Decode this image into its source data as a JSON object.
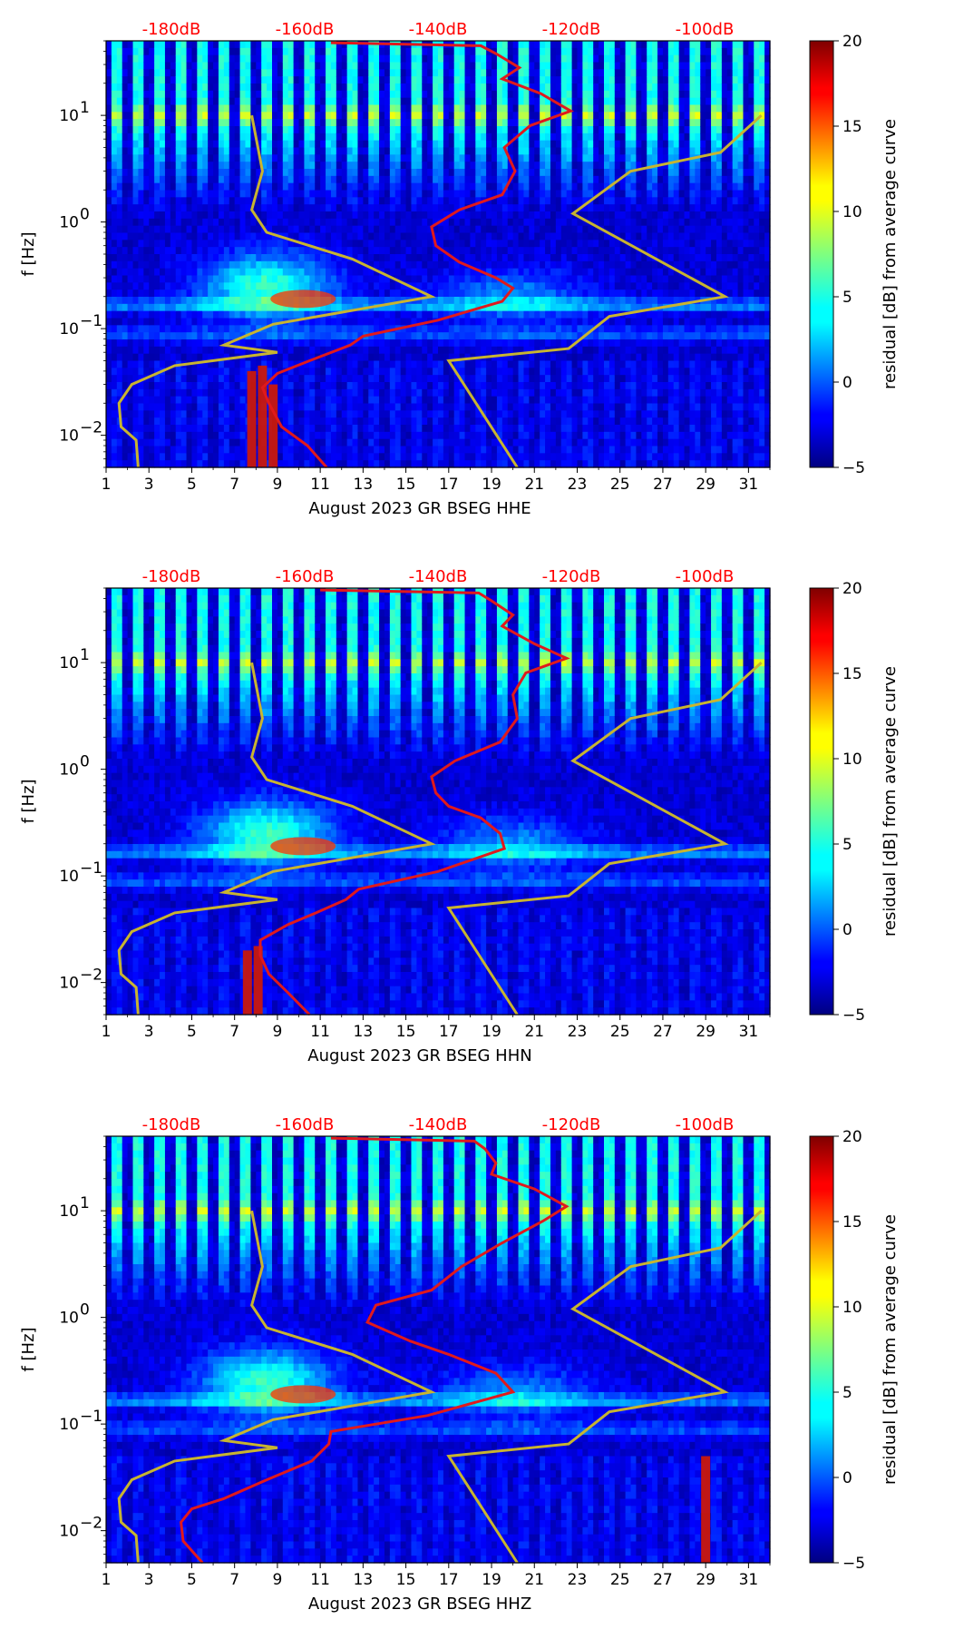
{
  "chart_data": [
    {
      "type": "heatmap",
      "channel": "HHE",
      "xlabel": "August 2023 GR BSEG  HHE",
      "ylabel": "f [Hz]",
      "x_ticks": [
        "1",
        "3",
        "5",
        "7",
        "9",
        "11",
        "13",
        "15",
        "17",
        "19",
        "21",
        "23",
        "25",
        "27",
        "29",
        "31"
      ],
      "y_ticks": [
        "10^-2",
        "10^-1",
        "10^0",
        "10^1"
      ],
      "xlim": [
        1,
        32
      ],
      "ylim": [
        0.005,
        50
      ],
      "yscale": "log",
      "colormap": "jet",
      "db_axis_ticks": [
        "-180dB",
        "-160dB",
        "-140dB",
        "-120dB",
        "-100dB"
      ],
      "db_axis_color": "#ff0000",
      "colorbar": {
        "label": "residual [dB] from average curve",
        "range": [
          -5,
          20
        ],
        "ticks": [
          "−5",
          "0",
          "5",
          "10",
          "15",
          "20"
        ]
      },
      "noise_models": [
        {
          "name": "",
          "color": "#c8b430",
          "points": [
            [
              2.5,
              0.005
            ],
            [
              2.4,
              0.009
            ],
            [
              1.7,
              0.012
            ],
            [
              1.6,
              0.02
            ],
            [
              2.2,
              0.03
            ],
            [
              4.2,
              0.045
            ],
            [
              9.0,
              0.06
            ],
            [
              6.5,
              0.07
            ],
            [
              8.8,
              0.11
            ],
            [
              16.2,
              0.2
            ],
            [
              12.5,
              0.45
            ],
            [
              8.5,
              0.8
            ],
            [
              7.8,
              1.3
            ],
            [
              8.3,
              3.0
            ],
            [
              7.8,
              10.0
            ]
          ]
        },
        {
          "name": "",
          "color": "#c8b430",
          "points": [
            [
              20.2,
              0.005
            ],
            [
              17.0,
              0.05
            ],
            [
              22.6,
              0.065
            ],
            [
              24.5,
              0.13
            ],
            [
              29.9,
              0.2
            ],
            [
              22.8,
              1.2
            ],
            [
              25.5,
              3.0
            ],
            [
              29.7,
              4.5
            ],
            [
              31.6,
              10.0
            ]
          ]
        }
      ],
      "psd_curve": {
        "color": "#e0191c",
        "points": [
          [
            11.3,
            0.005
          ],
          [
            10.4,
            0.008
          ],
          [
            9.2,
            0.012
          ],
          [
            8.6,
            0.02
          ],
          [
            8.3,
            0.028
          ],
          [
            9.0,
            0.038
          ],
          [
            10.5,
            0.05
          ],
          [
            12.4,
            0.07
          ],
          [
            13.0,
            0.085
          ],
          [
            16.5,
            0.12
          ],
          [
            19.5,
            0.18
          ],
          [
            20.0,
            0.24
          ],
          [
            19.2,
            0.3
          ],
          [
            17.5,
            0.42
          ],
          [
            16.4,
            0.6
          ],
          [
            16.2,
            0.9
          ],
          [
            17.5,
            1.3
          ],
          [
            19.5,
            1.8
          ],
          [
            20.1,
            3.0
          ],
          [
            19.6,
            5.0
          ],
          [
            20.8,
            8.0
          ],
          [
            22.7,
            11.0
          ],
          [
            21.3,
            16.0
          ],
          [
            19.5,
            22.0
          ],
          [
            20.3,
            28.0
          ],
          [
            19.2,
            38.0
          ],
          [
            18.5,
            45.0
          ],
          [
            11.5,
            48.0
          ]
        ]
      },
      "vertical_streaks": [
        {
          "day": 7.8,
          "fmax": 0.04
        },
        {
          "day": 8.3,
          "fmax": 0.045
        },
        {
          "day": 8.8,
          "fmax": 0.03
        }
      ]
    },
    {
      "type": "heatmap",
      "channel": "HHN",
      "xlabel": "August 2023 GR BSEG  HHN",
      "ylabel": "f [Hz]",
      "x_ticks": [
        "1",
        "3",
        "5",
        "7",
        "9",
        "11",
        "13",
        "15",
        "17",
        "19",
        "21",
        "23",
        "25",
        "27",
        "29",
        "31"
      ],
      "y_ticks": [
        "10^-2",
        "10^-1",
        "10^0",
        "10^1"
      ],
      "xlim": [
        1,
        32
      ],
      "ylim": [
        0.005,
        50
      ],
      "yscale": "log",
      "colormap": "jet",
      "db_axis_ticks": [
        "-180dB",
        "-160dB",
        "-140dB",
        "-120dB",
        "-100dB"
      ],
      "db_axis_color": "#ff0000",
      "colorbar": {
        "label": "residual [dB] from average curve",
        "range": [
          -5,
          20
        ],
        "ticks": [
          "−5",
          "0",
          "5",
          "10",
          "15",
          "20"
        ]
      },
      "noise_models": [
        {
          "name": "",
          "color": "#c8b430",
          "points": [
            [
              2.5,
              0.005
            ],
            [
              2.4,
              0.009
            ],
            [
              1.7,
              0.012
            ],
            [
              1.6,
              0.02
            ],
            [
              2.2,
              0.03
            ],
            [
              4.2,
              0.045
            ],
            [
              9.0,
              0.06
            ],
            [
              6.5,
              0.07
            ],
            [
              8.8,
              0.11
            ],
            [
              16.2,
              0.2
            ],
            [
              12.5,
              0.45
            ],
            [
              8.5,
              0.8
            ],
            [
              7.8,
              1.3
            ],
            [
              8.3,
              3.0
            ],
            [
              7.8,
              10.0
            ]
          ]
        },
        {
          "name": "",
          "color": "#c8b430",
          "points": [
            [
              20.2,
              0.005
            ],
            [
              17.0,
              0.05
            ],
            [
              22.6,
              0.065
            ],
            [
              24.5,
              0.13
            ],
            [
              29.9,
              0.2
            ],
            [
              22.8,
              1.2
            ],
            [
              25.5,
              3.0
            ],
            [
              29.7,
              4.5
            ],
            [
              31.6,
              10.0
            ]
          ]
        }
      ],
      "psd_curve": {
        "color": "#e0191c",
        "points": [
          [
            10.5,
            0.005
          ],
          [
            9.5,
            0.008
          ],
          [
            8.6,
            0.012
          ],
          [
            8.2,
            0.018
          ],
          [
            8.2,
            0.025
          ],
          [
            9.5,
            0.035
          ],
          [
            10.8,
            0.045
          ],
          [
            12.2,
            0.06
          ],
          [
            12.8,
            0.075
          ],
          [
            16.5,
            0.11
          ],
          [
            19.6,
            0.18
          ],
          [
            19.4,
            0.25
          ],
          [
            18.5,
            0.35
          ],
          [
            17.0,
            0.45
          ],
          [
            16.4,
            0.6
          ],
          [
            16.2,
            0.85
          ],
          [
            17.3,
            1.2
          ],
          [
            19.4,
            1.8
          ],
          [
            20.2,
            3.0
          ],
          [
            20.0,
            5.0
          ],
          [
            20.6,
            8.0
          ],
          [
            22.5,
            11.0
          ],
          [
            21.0,
            15.0
          ],
          [
            19.5,
            22.0
          ],
          [
            20.0,
            28.0
          ],
          [
            19.0,
            38.0
          ],
          [
            18.4,
            45.0
          ],
          [
            11.0,
            48.0
          ]
        ]
      },
      "vertical_streaks": [
        {
          "day": 7.6,
          "fmax": 0.02
        },
        {
          "day": 8.1,
          "fmax": 0.022
        }
      ]
    },
    {
      "type": "heatmap",
      "channel": "HHZ",
      "xlabel": "August 2023 GR BSEG  HHZ",
      "ylabel": "f [Hz]",
      "x_ticks": [
        "1",
        "3",
        "5",
        "7",
        "9",
        "11",
        "13",
        "15",
        "17",
        "19",
        "21",
        "23",
        "25",
        "27",
        "29",
        "31"
      ],
      "y_ticks": [
        "10^-2",
        "10^-1",
        "10^0",
        "10^1"
      ],
      "xlim": [
        1,
        32
      ],
      "ylim": [
        0.005,
        50
      ],
      "yscale": "log",
      "colormap": "jet",
      "db_axis_ticks": [
        "-180dB",
        "-160dB",
        "-140dB",
        "-120dB",
        "-100dB"
      ],
      "db_axis_color": "#ff0000",
      "colorbar": {
        "label": "residual [dB] from average curve",
        "range": [
          -5,
          20
        ],
        "ticks": [
          "−5",
          "0",
          "5",
          "10",
          "15",
          "20"
        ]
      },
      "noise_models": [
        {
          "name": "",
          "color": "#c8b430",
          "points": [
            [
              2.5,
              0.005
            ],
            [
              2.4,
              0.009
            ],
            [
              1.7,
              0.012
            ],
            [
              1.6,
              0.02
            ],
            [
              2.2,
              0.03
            ],
            [
              4.2,
              0.045
            ],
            [
              9.0,
              0.06
            ],
            [
              6.5,
              0.07
            ],
            [
              8.8,
              0.11
            ],
            [
              16.2,
              0.2
            ],
            [
              12.5,
              0.45
            ],
            [
              8.5,
              0.8
            ],
            [
              7.8,
              1.3
            ],
            [
              8.3,
              3.0
            ],
            [
              7.8,
              10.0
            ]
          ]
        },
        {
          "name": "",
          "color": "#c8b430",
          "points": [
            [
              20.2,
              0.005
            ],
            [
              17.0,
              0.05
            ],
            [
              22.6,
              0.065
            ],
            [
              24.5,
              0.13
            ],
            [
              29.9,
              0.2
            ],
            [
              22.8,
              1.2
            ],
            [
              25.5,
              3.0
            ],
            [
              29.7,
              4.5
            ],
            [
              31.6,
              10.0
            ]
          ]
        }
      ],
      "psd_curve": {
        "color": "#e0191c",
        "points": [
          [
            5.5,
            0.005
          ],
          [
            4.6,
            0.008
          ],
          [
            4.5,
            0.012
          ],
          [
            5.0,
            0.016
          ],
          [
            6.5,
            0.02
          ],
          [
            8.5,
            0.03
          ],
          [
            10.6,
            0.045
          ],
          [
            11.4,
            0.065
          ],
          [
            11.5,
            0.085
          ],
          [
            16.0,
            0.12
          ],
          [
            20.0,
            0.2
          ],
          [
            19.2,
            0.3
          ],
          [
            17.0,
            0.45
          ],
          [
            15.2,
            0.6
          ],
          [
            13.2,
            0.9
          ],
          [
            13.6,
            1.3
          ],
          [
            16.2,
            1.8
          ],
          [
            17.6,
            3.0
          ],
          [
            19.5,
            5.0
          ],
          [
            21.4,
            8.0
          ],
          [
            22.5,
            11.0
          ],
          [
            21.0,
            16.0
          ],
          [
            19.0,
            22.0
          ],
          [
            19.2,
            28.0
          ],
          [
            18.7,
            38.0
          ],
          [
            18.2,
            45.0
          ],
          [
            11.5,
            48.0
          ]
        ]
      },
      "vertical_streaks": [
        {
          "day": 29.0,
          "fmax": 0.05
        }
      ]
    }
  ]
}
